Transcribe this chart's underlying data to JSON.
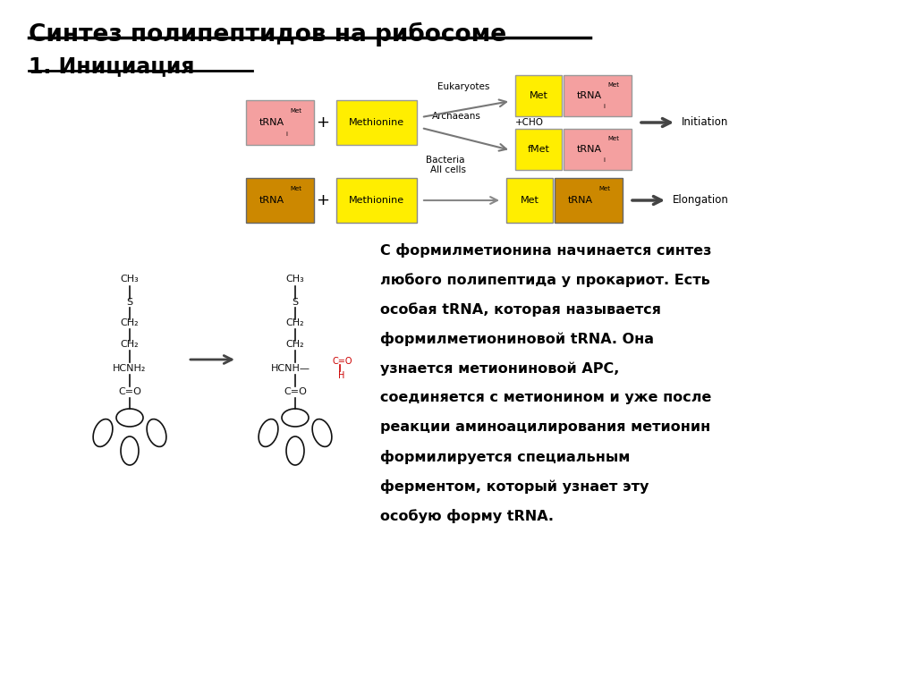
{
  "title": "Синтез полипептидов на рибосоме",
  "subtitle": "1. Инициация",
  "bg_color": "#ffffff",
  "text_color": "#000000",
  "pink_color": "#f4a0a0",
  "yellow_color": "#ffee00",
  "orange_color": "#e8a000",
  "dark_orange": "#cc8800",
  "desc_lines": [
    "С формилметионина начинается синтез",
    "любого полипептида у прокариот. Есть",
    "особая tRNA, которая называется",
    "формилметиониновой tRNA. Она",
    "узнается метиониновой АРС,",
    "соединяется с метионином и уже после",
    "реакции аминоацилирования метионин",
    "формилируется специальным",
    "ферментом, который узнает эту",
    "особую форму tRNA."
  ]
}
